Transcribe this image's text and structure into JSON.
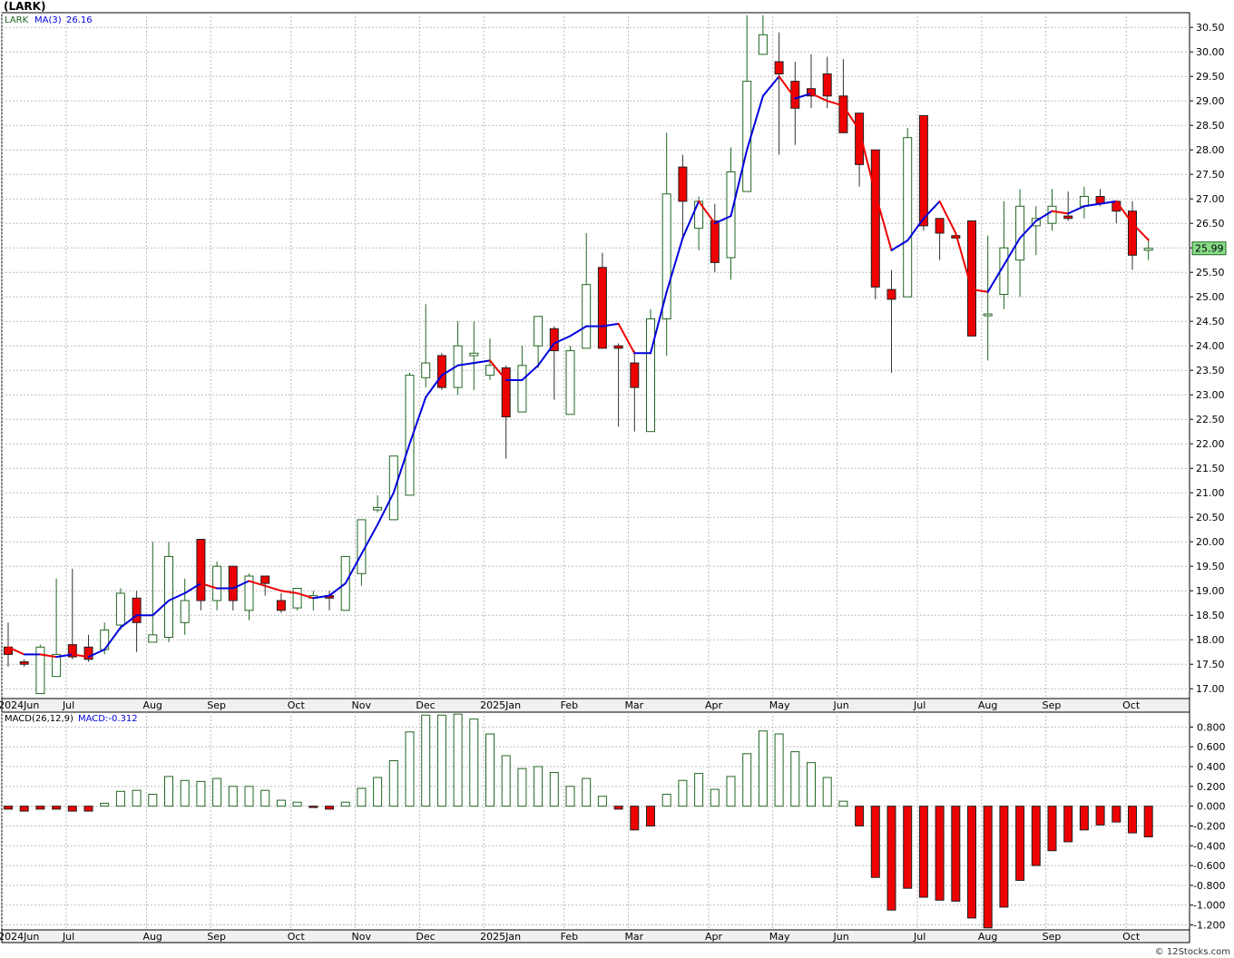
{
  "title": "(LARK)",
  "footer": "© 12Stocks.com",
  "legend": {
    "symbol": "LARK",
    "ma_label": "MA(3)",
    "ma_value": "26.16",
    "macd_label": "MACD(26,12,9)",
    "macd_value": "MACD:-0.312"
  },
  "last_price_label": "25.99",
  "colors": {
    "up": "#226622",
    "down": "#ee0000",
    "ma_up": "#0000dd",
    "ma_down": "#ee0000",
    "price_badge": "#88dd88",
    "grid": "#bbbbbb"
  },
  "chart_data": [
    {
      "type": "candlestick",
      "ylim": [
        16.8,
        30.8
      ],
      "y_ticks": [
        "17.00",
        "17.50",
        "18.00",
        "18.50",
        "19.00",
        "19.50",
        "20.00",
        "20.50",
        "21.00",
        "21.50",
        "22.00",
        "22.50",
        "23.00",
        "23.50",
        "24.00",
        "24.50",
        "25.00",
        "25.50",
        "26.00",
        "26.50",
        "27.00",
        "27.50",
        "28.00",
        "28.50",
        "29.00",
        "29.50",
        "30.00",
        "30.50"
      ],
      "x_labels": [
        "2024Jun",
        "Jul",
        "Aug",
        "Sep",
        "Oct",
        "Nov",
        "Dec",
        "2025Jan",
        "Feb",
        "Mar",
        "Apr",
        "May",
        "Jun",
        "Jul",
        "Aug",
        "Sep",
        "Oct"
      ],
      "x_label_weeks": [
        0,
        4,
        9,
        13,
        18,
        22,
        26,
        30,
        35,
        39,
        44,
        48,
        52,
        57,
        61,
        65,
        70
      ],
      "candles": [
        {
          "o": 17.85,
          "h": 18.35,
          "l": 17.45,
          "c": 17.7
        },
        {
          "o": 17.55,
          "h": 17.6,
          "l": 17.45,
          "c": 17.5
        },
        {
          "o": 16.9,
          "h": 17.9,
          "l": 16.9,
          "c": 17.85
        },
        {
          "o": 17.25,
          "h": 19.25,
          "l": 17.25,
          "c": 17.7
        },
        {
          "o": 17.9,
          "h": 19.45,
          "l": 17.6,
          "c": 17.65
        },
        {
          "o": 17.85,
          "h": 18.1,
          "l": 17.55,
          "c": 17.6
        },
        {
          "o": 17.8,
          "h": 18.35,
          "l": 17.7,
          "c": 18.2
        },
        {
          "o": 18.3,
          "h": 19.05,
          "l": 18.2,
          "c": 18.95
        },
        {
          "o": 18.85,
          "h": 19.0,
          "l": 17.75,
          "c": 18.35
        },
        {
          "o": 17.95,
          "h": 20.0,
          "l": 17.95,
          "c": 18.1
        },
        {
          "o": 18.05,
          "h": 20.0,
          "l": 17.95,
          "c": 19.7
        },
        {
          "o": 18.35,
          "h": 19.25,
          "l": 18.1,
          "c": 18.8
        },
        {
          "o": 20.05,
          "h": 20.05,
          "l": 18.6,
          "c": 18.8
        },
        {
          "o": 18.8,
          "h": 19.6,
          "l": 18.6,
          "c": 19.5
        },
        {
          "o": 19.5,
          "h": 19.5,
          "l": 18.6,
          "c": 18.8
        },
        {
          "o": 18.6,
          "h": 19.35,
          "l": 18.4,
          "c": 19.3
        },
        {
          "o": 19.3,
          "h": 19.3,
          "l": 18.9,
          "c": 19.15
        },
        {
          "o": 18.8,
          "h": 18.95,
          "l": 18.55,
          "c": 18.6
        },
        {
          "o": 18.65,
          "h": 19.05,
          "l": 18.6,
          "c": 19.05
        },
        {
          "o": 18.85,
          "h": 19.0,
          "l": 18.6,
          "c": 18.9
        },
        {
          "o": 18.9,
          "h": 19.0,
          "l": 18.6,
          "c": 18.85
        },
        {
          "o": 18.6,
          "h": 19.7,
          "l": 18.6,
          "c": 19.7
        },
        {
          "o": 19.35,
          "h": 20.45,
          "l": 19.1,
          "c": 20.45
        },
        {
          "o": 20.65,
          "h": 20.95,
          "l": 20.6,
          "c": 20.7
        },
        {
          "o": 20.45,
          "h": 21.75,
          "l": 20.45,
          "c": 21.75
        },
        {
          "o": 20.95,
          "h": 23.45,
          "l": 20.95,
          "c": 23.4
        },
        {
          "o": 23.35,
          "h": 24.85,
          "l": 23.15,
          "c": 23.65
        },
        {
          "o": 23.8,
          "h": 23.85,
          "l": 23.1,
          "c": 23.15
        },
        {
          "o": 23.15,
          "h": 24.5,
          "l": 23.0,
          "c": 24.0
        },
        {
          "o": 23.8,
          "h": 24.5,
          "l": 23.1,
          "c": 23.85
        },
        {
          "o": 23.4,
          "h": 24.15,
          "l": 23.3,
          "c": 23.6
        },
        {
          "o": 23.55,
          "h": 23.6,
          "l": 21.7,
          "c": 22.55
        },
        {
          "o": 22.65,
          "h": 24.0,
          "l": 22.65,
          "c": 23.6
        },
        {
          "o": 24.0,
          "h": 24.6,
          "l": 23.55,
          "c": 24.6
        },
        {
          "o": 24.35,
          "h": 24.4,
          "l": 22.9,
          "c": 23.9
        },
        {
          "o": 22.6,
          "h": 24.0,
          "l": 22.6,
          "c": 23.9
        },
        {
          "o": 23.95,
          "h": 26.3,
          "l": 23.95,
          "c": 25.25
        },
        {
          "o": 25.6,
          "h": 25.9,
          "l": 23.95,
          "c": 23.95
        },
        {
          "o": 24.0,
          "h": 24.05,
          "l": 22.35,
          "c": 23.95
        },
        {
          "o": 23.65,
          "h": 23.9,
          "l": 22.25,
          "c": 23.15
        },
        {
          "o": 22.25,
          "h": 24.75,
          "l": 22.25,
          "c": 24.55
        },
        {
          "o": 24.55,
          "h": 28.35,
          "l": 23.8,
          "c": 27.1
        },
        {
          "o": 27.65,
          "h": 27.9,
          "l": 26.15,
          "c": 26.95
        },
        {
          "o": 26.4,
          "h": 27.05,
          "l": 25.95,
          "c": 26.95
        },
        {
          "o": 26.55,
          "h": 26.9,
          "l": 25.5,
          "c": 25.7
        },
        {
          "o": 25.8,
          "h": 28.05,
          "l": 25.35,
          "c": 27.55
        },
        {
          "o": 27.15,
          "h": 30.75,
          "l": 27.15,
          "c": 29.4
        },
        {
          "o": 29.95,
          "h": 30.75,
          "l": 29.95,
          "c": 30.35
        },
        {
          "o": 29.8,
          "h": 30.4,
          "l": 27.9,
          "c": 29.55
        },
        {
          "o": 29.4,
          "h": 29.8,
          "l": 28.1,
          "c": 28.85
        },
        {
          "o": 29.25,
          "h": 29.95,
          "l": 28.85,
          "c": 29.1
        },
        {
          "o": 29.55,
          "h": 29.9,
          "l": 28.85,
          "c": 29.1
        },
        {
          "o": 29.1,
          "h": 29.85,
          "l": 28.35,
          "c": 28.35
        },
        {
          "o": 28.75,
          "h": 28.75,
          "l": 27.25,
          "c": 27.7
        },
        {
          "o": 28.0,
          "h": 28.0,
          "l": 24.95,
          "c": 25.2
        },
        {
          "o": 25.15,
          "h": 25.55,
          "l": 23.45,
          "c": 24.95
        },
        {
          "o": 25.0,
          "h": 28.45,
          "l": 25.0,
          "c": 28.25
        },
        {
          "o": 28.7,
          "h": 28.7,
          "l": 26.35,
          "c": 26.45
        },
        {
          "o": 26.6,
          "h": 26.6,
          "l": 25.75,
          "c": 26.3
        },
        {
          "o": 26.25,
          "h": 26.3,
          "l": 26.2,
          "c": 26.2
        },
        {
          "o": 26.55,
          "h": 26.55,
          "l": 24.2,
          "c": 24.2
        },
        {
          "o": 24.65,
          "h": 26.25,
          "l": 23.7,
          "c": 24.65
        },
        {
          "o": 25.05,
          "h": 26.95,
          "l": 24.75,
          "c": 26.0
        },
        {
          "o": 25.75,
          "h": 27.2,
          "l": 25.0,
          "c": 26.85
        },
        {
          "o": 26.45,
          "h": 26.85,
          "l": 25.85,
          "c": 26.6
        },
        {
          "o": 26.5,
          "h": 27.2,
          "l": 26.35,
          "c": 26.85
        },
        {
          "o": 26.65,
          "h": 27.15,
          "l": 26.55,
          "c": 26.6
        },
        {
          "o": 26.85,
          "h": 27.25,
          "l": 26.6,
          "c": 27.05
        },
        {
          "o": 27.05,
          "h": 27.2,
          "l": 26.85,
          "c": 26.9
        },
        {
          "o": 26.95,
          "h": 26.95,
          "l": 26.5,
          "c": 26.75
        },
        {
          "o": 26.75,
          "h": 26.95,
          "l": 25.55,
          "c": 25.85
        },
        {
          "o": 25.95,
          "h": 26.2,
          "l": 25.75,
          "c": 25.99
        }
      ],
      "ma3": [
        17.85,
        17.7,
        17.7,
        17.65,
        17.7,
        17.65,
        17.8,
        18.25,
        18.5,
        18.5,
        18.8,
        18.95,
        19.15,
        19.05,
        19.05,
        19.2,
        19.1,
        19.0,
        18.95,
        18.85,
        18.9,
        19.15,
        19.75,
        20.35,
        21.0,
        22.0,
        22.95,
        23.4,
        23.6,
        23.65,
        23.7,
        23.3,
        23.3,
        23.6,
        24.05,
        24.2,
        24.4,
        24.4,
        24.45,
        23.85,
        23.85,
        25.1,
        26.2,
        26.95,
        26.5,
        26.65,
        28.0,
        29.1,
        29.5,
        29.05,
        29.15,
        29.0,
        28.9,
        28.4,
        27.1,
        25.95,
        26.15,
        26.6,
        26.95,
        26.3,
        25.15,
        25.1,
        25.65,
        26.2,
        26.55,
        26.75,
        26.7,
        26.85,
        26.9,
        26.95,
        26.5,
        26.16
      ]
    },
    {
      "type": "bar",
      "name": "MACD(26,12,9)",
      "ylim": [
        -1.25,
        0.95
      ],
      "y_ticks": [
        "0.800",
        "0.600",
        "0.400",
        "0.200",
        "0.000",
        "-0.200",
        "-0.400",
        "-0.600",
        "-0.800",
        "-1.000",
        "-1.200"
      ],
      "values": [
        -0.03,
        -0.05,
        -0.03,
        -0.03,
        -0.05,
        -0.05,
        0.03,
        0.15,
        0.16,
        0.12,
        0.3,
        0.26,
        0.25,
        0.28,
        0.2,
        0.2,
        0.16,
        0.06,
        0.04,
        -0.01,
        -0.03,
        0.04,
        0.18,
        0.29,
        0.46,
        0.75,
        0.92,
        0.92,
        0.93,
        0.88,
        0.73,
        0.51,
        0.38,
        0.4,
        0.34,
        0.2,
        0.28,
        0.1,
        -0.03,
        -0.24,
        -0.2,
        0.12,
        0.26,
        0.33,
        0.17,
        0.3,
        0.53,
        0.76,
        0.73,
        0.55,
        0.44,
        0.29,
        0.05,
        -0.2,
        -0.72,
        -1.05,
        -0.83,
        -0.92,
        -0.95,
        -0.96,
        -1.13,
        -1.23,
        -1.02,
        -0.75,
        -0.6,
        -0.45,
        -0.36,
        -0.24,
        -0.19,
        -0.16,
        -0.27,
        -0.31
      ]
    }
  ]
}
